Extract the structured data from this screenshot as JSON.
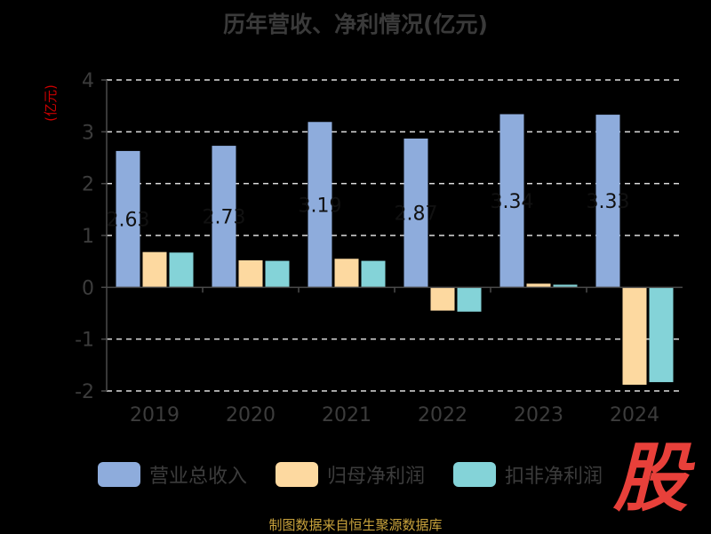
{
  "title": "历年营收、净利情况(亿元)",
  "source": "制图数据来自恒生聚源数据库",
  "logo": "股",
  "colors": {
    "revenue": "#8eacdc",
    "net_profit": "#fdd9a0",
    "deducted_profit": "#84d3d8",
    "axis": "#4a4a4a",
    "grid": "#dddddd",
    "ylabel": "#cc0000"
  },
  "chart_data": {
    "type": "bar",
    "title": "历年营收、净利情况(亿元)",
    "ylabel": "(亿元)",
    "ylim": [
      -2,
      4
    ],
    "yticks": [
      "4",
      "3",
      "2",
      "1",
      "0",
      "-1",
      "-2"
    ],
    "grid": true,
    "legend_position": "bottom",
    "categories": [
      "2019",
      "2020",
      "2021",
      "2022",
      "2023",
      "2024"
    ],
    "series": [
      {
        "name": "营业总收入",
        "values": [
          2.63,
          2.73,
          3.19,
          2.87,
          3.34,
          3.33
        ],
        "labels": [
          "2.63",
          "2.73",
          "3.19",
          "2.87",
          "3.34",
          "3.33"
        ]
      },
      {
        "name": "归母净利润",
        "values": [
          0.68,
          0.52,
          0.55,
          -0.45,
          0.07,
          -1.88
        ]
      },
      {
        "name": "扣非净利润",
        "values": [
          0.67,
          0.51,
          0.51,
          -0.47,
          0.05,
          -1.83
        ]
      }
    ]
  }
}
